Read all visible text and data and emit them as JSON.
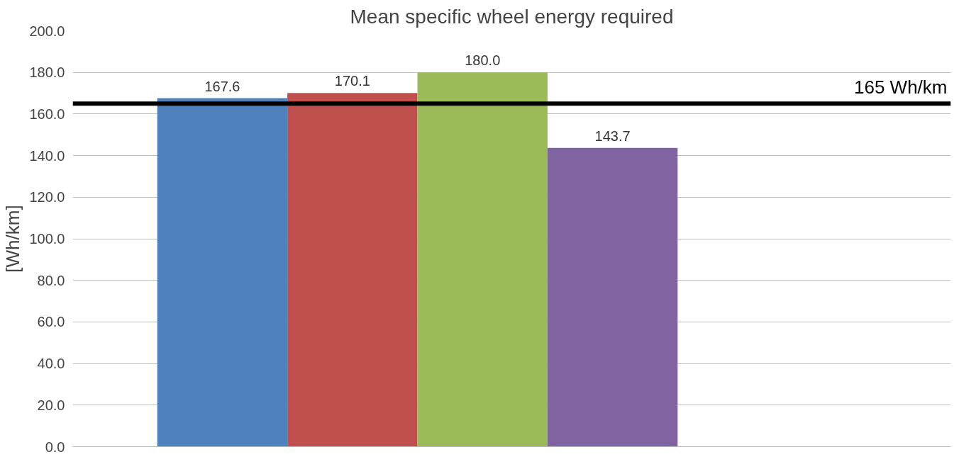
{
  "chart_data": {
    "type": "bar",
    "title": "Mean specific wheel energy required",
    "ylabel": "[Wh/km]",
    "categories": [
      null,
      null,
      null,
      null
    ],
    "values": [
      167.6,
      170.1,
      180.0,
      143.7
    ],
    "colors": [
      "#4f81bd",
      "#c0504d",
      "#9bbb59",
      "#8064a2"
    ],
    "value_labels": [
      "167.6",
      "170.1",
      "180.0",
      "143.7"
    ],
    "ylim": [
      0,
      200
    ],
    "yticks": [
      {
        "value": 0,
        "label": "0.0"
      },
      {
        "value": 20,
        "label": "20.0"
      },
      {
        "value": 40,
        "label": "40.0"
      },
      {
        "value": 60,
        "label": "60.0"
      },
      {
        "value": 80,
        "label": "80.0"
      },
      {
        "value": 100,
        "label": "100.0"
      },
      {
        "value": 120,
        "label": "120.0"
      },
      {
        "value": 140,
        "label": "140.0"
      },
      {
        "value": 160,
        "label": "160.0"
      },
      {
        "value": 180,
        "label": "180.0"
      },
      {
        "value": 200,
        "label": "200.0"
      }
    ],
    "grid": "y",
    "ref_lines": [
      {
        "axis": "y",
        "value": 165,
        "label": "165 Wh/km",
        "color": "#000000"
      }
    ]
  }
}
